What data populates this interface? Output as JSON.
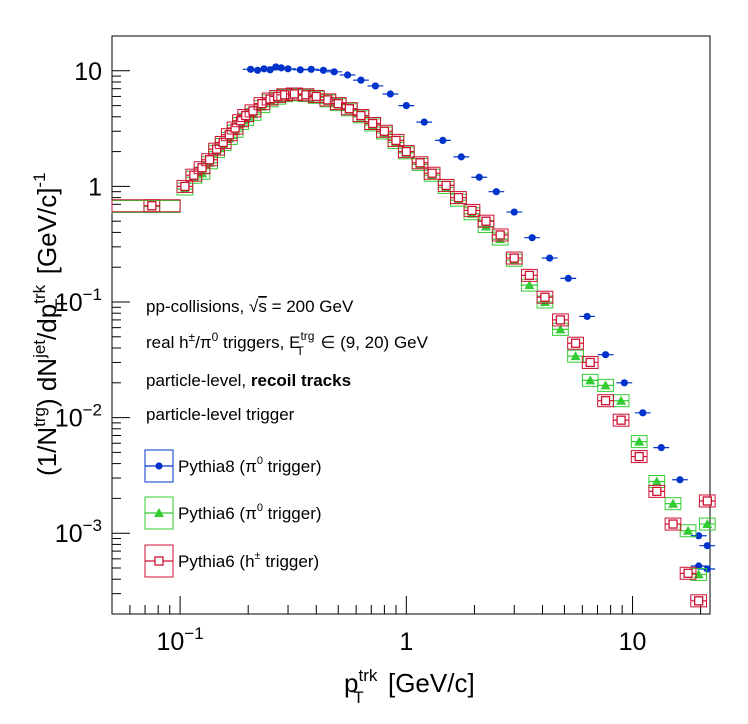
{
  "chart_data": {
    "type": "scatter",
    "xscale": "log",
    "yscale": "log",
    "xlim": [
      0.05,
      22
    ],
    "ylim": [
      0.0002,
      20
    ],
    "xlabel": "p_T^trk [GeV/c]",
    "ylabel": "(1/N^trg) dN^jet/dp_T^trk [GeV/c]^-1",
    "x_tick_labels": [
      {
        "value": 0.1,
        "base": "10",
        "exp": "−1"
      },
      {
        "value": 1,
        "base": "1",
        "exp": ""
      },
      {
        "value": 10,
        "base": "10",
        "exp": ""
      }
    ],
    "y_tick_labels": [
      {
        "value": 0.001,
        "base": "10",
        "exp": "−3"
      },
      {
        "value": 0.01,
        "base": "10",
        "exp": "−2"
      },
      {
        "value": 0.1,
        "base": "10",
        "exp": "−1"
      },
      {
        "value": 1,
        "base": "1",
        "exp": ""
      },
      {
        "value": 10,
        "base": "10",
        "exp": ""
      }
    ],
    "annotations": {
      "line1_pre": "pp-collisions, ",
      "line1_sqrt": "√",
      "line1_s": "s",
      "line1_post": " = 200 GeV",
      "line2_pre": "real h",
      "line2_pm": "±",
      "line2_slash": "/π",
      "line2_zero": "0",
      "line2_mid": " triggers, E",
      "line2_sup": "trg",
      "line2_sub": "T",
      "line2_post": " ∈ (9, 20) GeV",
      "line3_normal": "particle-level, ",
      "line3_bold": "recoil tracks",
      "line4": "particle-level trigger"
    },
    "series": [
      {
        "name": "Pythia8 (π⁰ trigger)",
        "legend_main": "Pythia8 (π",
        "legend_sup": "0",
        "legend_post": " trigger)",
        "color": "#0033cc",
        "marker": "circle",
        "x": [
          0.205,
          0.22,
          0.235,
          0.25,
          0.265,
          0.28,
          0.3,
          0.34,
          0.38,
          0.43,
          0.48,
          0.55,
          0.63,
          0.73,
          0.85,
          1.0,
          1.2,
          1.45,
          1.75,
          2.1,
          2.5,
          3.0,
          3.6,
          4.3,
          5.2,
          6.3,
          7.6,
          9.2,
          11.1,
          13.4,
          16.2,
          19.6,
          21.4
        ],
        "y": [
          10.3,
          10.1,
          10.4,
          10.2,
          10.8,
          10.6,
          10.4,
          10.2,
          10.3,
          10.1,
          9.8,
          9.2,
          8.3,
          7.4,
          6.3,
          5.0,
          3.6,
          2.5,
          1.8,
          1.2,
          0.9,
          0.6,
          0.36,
          0.24,
          0.16,
          0.075,
          0.035,
          0.02,
          0.011,
          0.0055,
          0.0029,
          0.00095,
          0.00078
        ],
        "y2": [
          0,
          0,
          0,
          0,
          0,
          0,
          0,
          0,
          0,
          0,
          0,
          0,
          0,
          0,
          0,
          0,
          0,
          0,
          0,
          0,
          0,
          0,
          0,
          0,
          0,
          0,
          0,
          0,
          0,
          0,
          0,
          0.00052,
          0.00049
        ]
      },
      {
        "name": "Pythia6 (π⁰ trigger)",
        "legend_main": "Pythia6 (π",
        "legend_sup": "0",
        "legend_post": " trigger)",
        "color": "#33cc33",
        "marker": "triangle",
        "x": [
          0.075,
          0.105,
          0.115,
          0.125,
          0.135,
          0.145,
          0.155,
          0.165,
          0.175,
          0.185,
          0.195,
          0.21,
          0.23,
          0.25,
          0.27,
          0.29,
          0.32,
          0.36,
          0.4,
          0.45,
          0.5,
          0.56,
          0.63,
          0.71,
          0.8,
          0.9,
          1.0,
          1.15,
          1.3,
          1.5,
          1.7,
          1.95,
          2.25,
          2.6,
          3.0,
          3.5,
          4.1,
          4.8,
          5.6,
          6.5,
          7.6,
          8.9,
          10.7,
          12.8,
          15.1,
          17.6,
          19.6,
          21.4
        ],
        "y": [
          0.67,
          0.95,
          1.2,
          1.3,
          1.6,
          2.0,
          2.3,
          2.6,
          3.0,
          3.5,
          3.8,
          4.2,
          4.9,
          5.5,
          5.8,
          6.1,
          6.2,
          6.1,
          5.9,
          5.5,
          5.1,
          4.6,
          4.0,
          3.4,
          2.9,
          2.4,
          1.95,
          1.55,
          1.25,
          0.98,
          0.76,
          0.58,
          0.45,
          0.35,
          0.23,
          0.14,
          0.1,
          0.058,
          0.034,
          0.021,
          0.019,
          0.014,
          0.0062,
          0.0028,
          0.0018,
          0.00105,
          0.00044,
          0.0012
        ]
      },
      {
        "name": "Pythia6 (h± trigger)",
        "legend_main": "Pythia6 (h",
        "legend_sup": "±",
        "legend_post": " trigger)",
        "color": "#cc1133",
        "marker": "square-open",
        "x": [
          0.075,
          0.105,
          0.115,
          0.125,
          0.135,
          0.145,
          0.155,
          0.165,
          0.175,
          0.185,
          0.195,
          0.21,
          0.23,
          0.25,
          0.27,
          0.29,
          0.32,
          0.36,
          0.4,
          0.45,
          0.5,
          0.56,
          0.63,
          0.71,
          0.8,
          0.9,
          1.0,
          1.15,
          1.3,
          1.5,
          1.7,
          1.95,
          2.25,
          2.6,
          3.0,
          3.5,
          4.1,
          4.8,
          5.6,
          6.5,
          7.6,
          8.9,
          10.7,
          12.8,
          15.1,
          17.6,
          19.6,
          21.4
        ],
        "y": [
          0.68,
          1.0,
          1.25,
          1.45,
          1.7,
          2.1,
          2.4,
          2.8,
          3.2,
          3.7,
          4.1,
          4.5,
          5.2,
          5.7,
          6.0,
          6.2,
          6.3,
          6.2,
          6.0,
          5.6,
          5.2,
          4.7,
          4.1,
          3.5,
          3.0,
          2.5,
          2.0,
          1.6,
          1.3,
          1.02,
          0.8,
          0.62,
          0.5,
          0.38,
          0.24,
          0.17,
          0.11,
          0.07,
          0.044,
          0.03,
          0.014,
          0.0095,
          0.0046,
          0.0023,
          0.0012,
          0.00045,
          0.00026,
          0.0019
        ]
      }
    ]
  }
}
